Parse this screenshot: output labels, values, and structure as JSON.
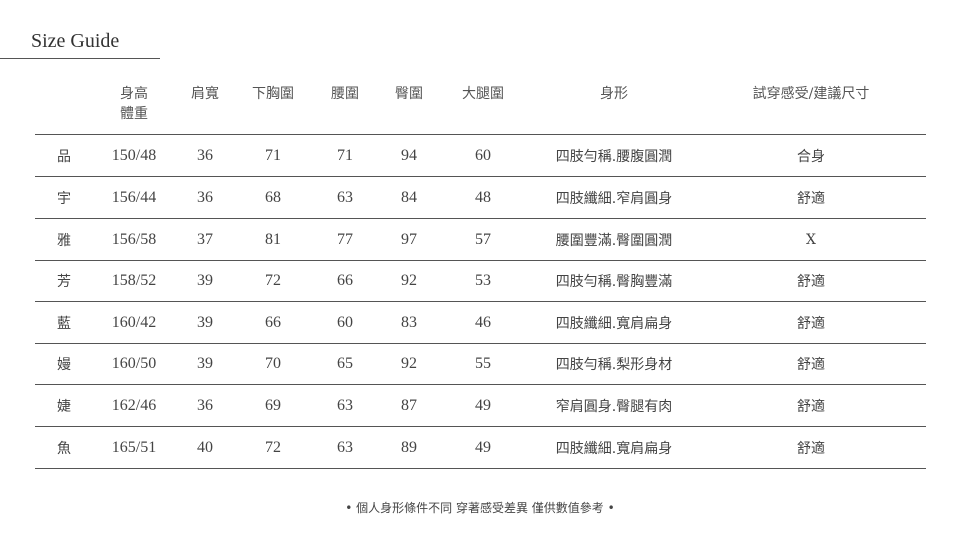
{
  "title": "Size Guide",
  "headers": [
    "",
    "身高\n體重",
    "肩寬",
    "下胸圍",
    "腰圍",
    "臀圍",
    "大腿圍",
    "身形",
    "試穿感受/建議尺寸"
  ],
  "rows": [
    [
      "品",
      "150/48",
      "36",
      "71",
      "71",
      "94",
      "60",
      "四肢勻稱.腰腹圓潤",
      "合身"
    ],
    [
      "宇",
      "156/44",
      "36",
      "68",
      "63",
      "84",
      "48",
      "四肢纖細.窄肩圓身",
      "舒適"
    ],
    [
      "雅",
      "156/58",
      "37",
      "81",
      "77",
      "97",
      "57",
      "腰圍豐滿.臀圍圓潤",
      "X"
    ],
    [
      "芳",
      "158/52",
      "39",
      "72",
      "66",
      "92",
      "53",
      "四肢勻稱.臀胸豐滿",
      "舒適"
    ],
    [
      "藍",
      "160/42",
      "39",
      "66",
      "60",
      "83",
      "46",
      "四肢纖細.寬肩扁身",
      "舒適"
    ],
    [
      "嫚",
      "160/50",
      "39",
      "70",
      "65",
      "92",
      "55",
      "四肢勻稱.梨形身材",
      "舒適"
    ],
    [
      "婕",
      "162/46",
      "36",
      "69",
      "63",
      "87",
      "49",
      "窄肩圓身.臀腿有肉",
      "舒適"
    ],
    [
      "魚",
      "165/51",
      "40",
      "72",
      "63",
      "89",
      "49",
      "四肢纖細.寬肩扁身",
      "舒適"
    ]
  ],
  "footnote": "• 個人身形條件不同 穿著感受差異 僅供數值參考 •"
}
